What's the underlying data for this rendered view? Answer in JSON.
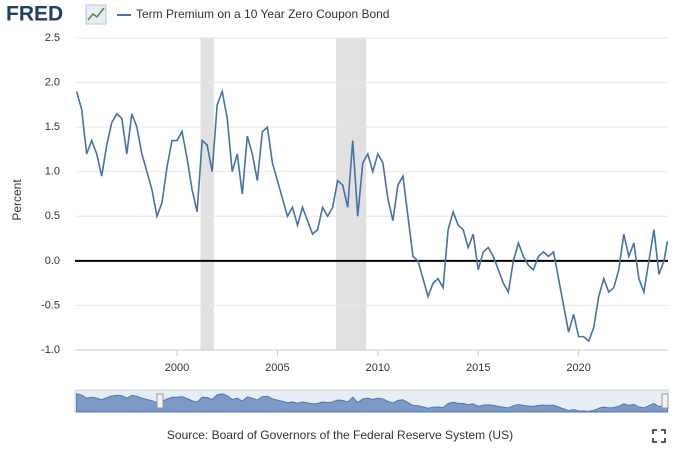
{
  "logo": "FRED",
  "source": "Source: Board of Governors of the Federal Reserve System (US)",
  "chart_data": {
    "type": "line",
    "y_label": "Percent",
    "series": [
      {
        "name": "Term Premium on a 10 Year Zero Coupon Bond",
        "color": "#4572a7",
        "x": [
          1995.0,
          1995.25,
          1995.5,
          1995.75,
          1996.0,
          1996.25,
          1996.5,
          1996.75,
          1997.0,
          1997.25,
          1997.5,
          1997.75,
          1998.0,
          1998.25,
          1998.5,
          1998.75,
          1999.0,
          1999.25,
          1999.5,
          1999.75,
          2000.0,
          2000.25,
          2000.5,
          2000.75,
          2001.0,
          2001.25,
          2001.5,
          2001.75,
          2002.0,
          2002.25,
          2002.5,
          2002.75,
          2003.0,
          2003.25,
          2003.5,
          2003.75,
          2004.0,
          2004.25,
          2004.5,
          2004.75,
          2005.0,
          2005.25,
          2005.5,
          2005.75,
          2006.0,
          2006.25,
          2006.5,
          2006.75,
          2007.0,
          2007.25,
          2007.5,
          2007.75,
          2008.0,
          2008.25,
          2008.5,
          2008.75,
          2009.0,
          2009.25,
          2009.5,
          2009.75,
          2010.0,
          2010.25,
          2010.5,
          2010.75,
          2011.0,
          2011.25,
          2011.5,
          2011.75,
          2012.0,
          2012.25,
          2012.5,
          2012.75,
          2013.0,
          2013.25,
          2013.5,
          2013.75,
          2014.0,
          2014.25,
          2014.5,
          2014.75,
          2015.0,
          2015.25,
          2015.5,
          2015.75,
          2016.0,
          2016.25,
          2016.5,
          2016.75,
          2017.0,
          2017.25,
          2017.5,
          2017.75,
          2018.0,
          2018.25,
          2018.5,
          2018.75,
          2019.0,
          2019.25,
          2019.5,
          2019.75,
          2020.0,
          2020.25,
          2020.5,
          2020.75,
          2021.0,
          2021.25,
          2021.5,
          2021.75,
          2022.0,
          2022.25,
          2022.5,
          2022.75,
          2023.0,
          2023.25,
          2023.5,
          2023.75,
          2024.0,
          2024.25,
          2024.42
        ],
        "values": [
          1.9,
          1.7,
          1.2,
          1.35,
          1.2,
          0.95,
          1.3,
          1.55,
          1.65,
          1.6,
          1.2,
          1.65,
          1.5,
          1.2,
          1.0,
          0.8,
          0.5,
          0.65,
          1.05,
          1.35,
          1.35,
          1.45,
          1.15,
          0.8,
          0.55,
          1.35,
          1.3,
          1.0,
          1.75,
          1.9,
          1.6,
          1.0,
          1.2,
          0.75,
          1.4,
          1.2,
          0.9,
          1.45,
          1.5,
          1.1,
          0.9,
          0.7,
          0.5,
          0.6,
          0.4,
          0.6,
          0.45,
          0.3,
          0.35,
          0.6,
          0.5,
          0.6,
          0.9,
          0.85,
          0.6,
          1.35,
          0.5,
          1.1,
          1.2,
          1.0,
          1.2,
          1.1,
          0.7,
          0.45,
          0.85,
          0.95,
          0.5,
          0.05,
          0.0,
          -0.2,
          -0.4,
          -0.25,
          -0.2,
          -0.3,
          0.35,
          0.55,
          0.4,
          0.35,
          0.15,
          0.3,
          -0.1,
          0.1,
          0.15,
          0.05,
          -0.1,
          -0.25,
          -0.35,
          0.0,
          0.2,
          0.05,
          -0.05,
          -0.1,
          0.05,
          0.1,
          0.05,
          0.1,
          -0.2,
          -0.5,
          -0.8,
          -0.6,
          -0.85,
          -0.85,
          -0.9,
          -0.75,
          -0.4,
          -0.2,
          -0.35,
          -0.3,
          -0.1,
          0.3,
          0.05,
          0.2,
          -0.2,
          -0.35,
          0.0,
          0.35,
          -0.15,
          0.0,
          0.22
        ]
      }
    ],
    "recessions": [
      [
        2001.17,
        2001.83
      ],
      [
        2007.92,
        2009.42
      ]
    ],
    "xlim": [
      1994.92,
      2024.45
    ],
    "xticks": [
      2000,
      2005,
      2010,
      2015,
      2020
    ],
    "ylim": [
      -1.0,
      2.5
    ],
    "yticks": [
      {
        "value": -1.0,
        "label": "-1.0"
      },
      {
        "value": -0.5,
        "label": "-0.5"
      },
      {
        "value": 0.0,
        "label": "0.0"
      },
      {
        "value": 0.5,
        "label": "0.5"
      },
      {
        "value": 1.0,
        "label": "1.0"
      },
      {
        "value": 1.5,
        "label": "1.5"
      },
      {
        "value": 2.0,
        "label": "2.0"
      },
      {
        "value": 2.5,
        "label": "2.5"
      }
    ],
    "grid": true
  }
}
